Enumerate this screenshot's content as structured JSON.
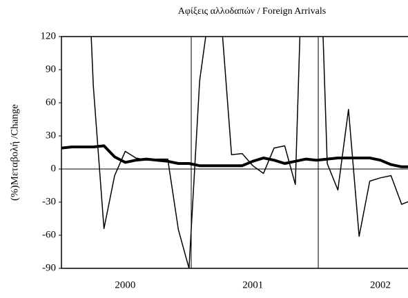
{
  "chart_data": {
    "type": "line",
    "title": "Αφίξεις αλλοδαπών / Foreign Arrivals",
    "y_label": "(%)Μεταβολή /Change",
    "categories": [
      null,
      null,
      null,
      null,
      null,
      null,
      "2000",
      null,
      null,
      null,
      null,
      null,
      null,
      null,
      null,
      null,
      null,
      null,
      "2001",
      null,
      null,
      null,
      null,
      null,
      null,
      null,
      null,
      null,
      null,
      null,
      "2002",
      null,
      null,
      null
    ],
    "series": [
      {
        "color": "#000000",
        "width": 1.5,
        "values": [
          null,
          null,
          300,
          75,
          -54,
          -6,
          16,
          10,
          8,
          9,
          9,
          -55,
          -90,
          80,
          150,
          140,
          13,
          14,
          3,
          -4,
          19,
          21,
          -14,
          300,
          300,
          5,
          -19,
          54,
          -61,
          -11,
          -8,
          -6,
          -32,
          -28
        ]
      },
      {
        "color": "#000000",
        "width": 4,
        "values": [
          19,
          20,
          20,
          20,
          21,
          11,
          6,
          8,
          9,
          8,
          7,
          5,
          5,
          3,
          3,
          3,
          3,
          3,
          7,
          10,
          8,
          5,
          7,
          9,
          8,
          9,
          10,
          10,
          10,
          10,
          8,
          4,
          2,
          2
        ]
      }
    ],
    "ylim": [
      -90,
      120
    ],
    "yticks": [
      -90,
      -60,
      -30,
      0,
      30,
      60,
      90,
      120
    ]
  }
}
